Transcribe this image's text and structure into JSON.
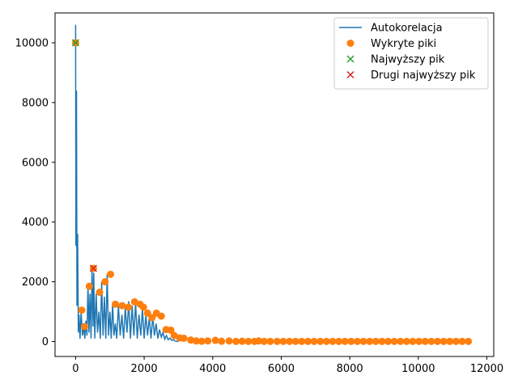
{
  "chart_data": {
    "type": "line",
    "title": "",
    "xlabel": "",
    "ylabel": "",
    "xlim": [
      -600,
      12200
    ],
    "ylim": [
      -500,
      11000
    ],
    "xticks": [
      0,
      2000,
      4000,
      6000,
      8000,
      10000,
      12000
    ],
    "xtick_labels": [
      "0",
      "2000",
      "4000",
      "6000",
      "8000",
      "10000",
      "12000"
    ],
    "yticks": [
      0,
      2000,
      4000,
      6000,
      8000,
      10000
    ],
    "ytick_labels": [
      "0",
      "2000",
      "4000",
      "6000",
      "8000",
      "10000"
    ],
    "grid": false,
    "legend_position": "upper-right",
    "legend": [
      {
        "label": "Autokorelacja",
        "kind": "line",
        "color": "#1f77b4"
      },
      {
        "label": "Wykryte piki",
        "kind": "circle",
        "color": "#ff7f0e"
      },
      {
        "label": "Najwyższy pik",
        "kind": "x",
        "color": "#2ca02c"
      },
      {
        "label": "Drugi najwyższy pik",
        "kind": "x",
        "color": "#d62728"
      }
    ],
    "series": [
      {
        "name": "Autokorelacja",
        "kind": "line",
        "color": "#1f77b4",
        "x": [
          0,
          10,
          25,
          40,
          60,
          80,
          100,
          130,
          160,
          200,
          240,
          270,
          300,
          330,
          360,
          390,
          420,
          450,
          480,
          510,
          530,
          560,
          600,
          640,
          680,
          720,
          760,
          800,
          840,
          880,
          920,
          960,
          1000,
          1040,
          1080,
          1120,
          1160,
          1200,
          1250,
          1300,
          1350,
          1400,
          1450,
          1500,
          1550,
          1600,
          1650,
          1700,
          1750,
          1800,
          1850,
          1900,
          1950,
          2000,
          2050,
          2100,
          2150,
          2200,
          2250,
          2300,
          2350,
          2400,
          2450,
          2500,
          2550,
          2600,
          2650,
          2700,
          2750,
          2800,
          2850,
          2900,
          2950,
          3000
        ],
        "y": [
          10600,
          3200,
          8400,
          1200,
          3600,
          300,
          900,
          100,
          1000,
          200,
          500,
          100,
          700,
          200,
          1900,
          300,
          1600,
          100,
          2450,
          500,
          2300,
          100,
          1600,
          300,
          1000,
          100,
          2000,
          200,
          1500,
          100,
          2250,
          200,
          1000,
          100,
          1250,
          200,
          600,
          100,
          1200,
          200,
          900,
          100,
          1150,
          300,
          1350,
          100,
          1200,
          200,
          1300,
          100,
          900,
          200,
          1100,
          100,
          900,
          200,
          800,
          100,
          850,
          200,
          600,
          100,
          400,
          150,
          300,
          80,
          200,
          60,
          120,
          40,
          60,
          20,
          10,
          0
        ]
      },
      {
        "name": "Wykryte piki",
        "kind": "scatter",
        "color": "#ff7f0e",
        "x": [
          0,
          180,
          260,
          400,
          520,
          700,
          860,
          1020,
          1160,
          1360,
          1540,
          1720,
          1880,
          1980,
          2100,
          2230,
          2360,
          2500,
          2640,
          2780,
          2880,
          3040,
          3160,
          3360,
          3520,
          3680,
          3860,
          4080,
          4260,
          4480,
          4680,
          4860,
          5040,
          5220,
          5340,
          5500,
          5680,
          5880,
          6060,
          6240,
          6420,
          6600,
          6780,
          6960,
          7140,
          7320,
          7500,
          7680,
          7860,
          8040,
          8220,
          8400,
          8580,
          8760,
          8940,
          9120,
          9300,
          9480,
          9660,
          9840,
          10020,
          10200,
          10380,
          10560,
          10740,
          10920,
          11100,
          11280,
          11460
        ],
        "y": [
          10000,
          1050,
          500,
          1850,
          2450,
          1650,
          2000,
          2250,
          1250,
          1200,
          1150,
          1330,
          1250,
          1150,
          950,
          800,
          950,
          850,
          400,
          380,
          200,
          120,
          110,
          50,
          20,
          10,
          20,
          40,
          10,
          20,
          5,
          10,
          5,
          5,
          20,
          5,
          5,
          5,
          5,
          5,
          5,
          5,
          5,
          5,
          5,
          5,
          5,
          5,
          5,
          5,
          5,
          5,
          5,
          5,
          5,
          5,
          5,
          5,
          5,
          5,
          5,
          5,
          5,
          5,
          5,
          5,
          5,
          5,
          5
        ]
      },
      {
        "name": "Najwyższy pik",
        "kind": "marker-x",
        "color": "#2ca02c",
        "x": [
          0
        ],
        "y": [
          10000
        ]
      },
      {
        "name": "Drugi najwyższy pik",
        "kind": "marker-x",
        "color": "#d62728",
        "x": [
          520
        ],
        "y": [
          2450
        ]
      }
    ]
  }
}
